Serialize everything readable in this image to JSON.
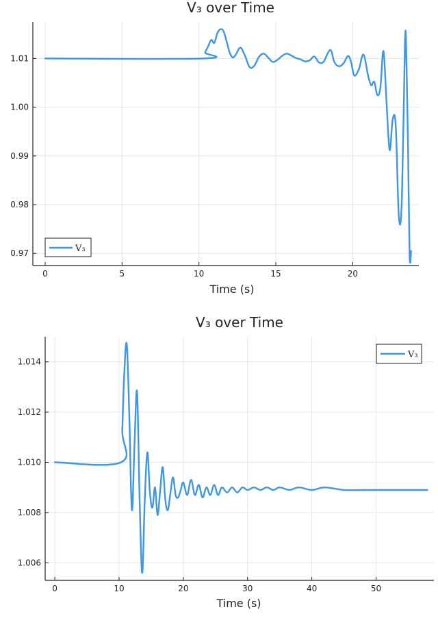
{
  "colors": {
    "series": "#3e97e0",
    "axis": "#222222",
    "grid": "#e6e6e6"
  },
  "chart_data": [
    {
      "type": "line",
      "title": "V₃ over Time",
      "xlabel": "Time (s)",
      "ylabel": "",
      "xlim": [
        -0.8,
        24.3
      ],
      "ylim": [
        0.9675,
        1.0175
      ],
      "xticks": [
        0,
        5,
        10,
        15,
        20
      ],
      "yticks": [
        0.97,
        0.98,
        0.99,
        1.0,
        1.01
      ],
      "ytick_labels": [
        "0.97",
        "0.98",
        "0.99",
        "1.00",
        "1.01"
      ],
      "grid": true,
      "legend_position": "bottom-left",
      "series": [
        {
          "name": "V₃",
          "x": [
            0,
            10.3,
            10.4,
            10.6,
            10.8,
            11.0,
            11.2,
            11.4,
            11.6,
            11.8,
            12.0,
            12.2,
            12.4,
            12.7,
            13.0,
            13.3,
            13.6,
            13.9,
            14.2,
            14.5,
            14.8,
            15.1,
            15.4,
            15.7,
            16.0,
            16.3,
            16.6,
            16.9,
            17.2,
            17.5,
            17.8,
            18.1,
            18.4,
            18.6,
            18.8,
            19.1,
            19.4,
            19.7,
            19.9,
            20.1,
            20.4,
            20.7,
            21.0,
            21.2,
            21.4,
            21.6,
            21.8,
            22.0,
            22.2,
            22.4,
            22.6,
            22.8,
            23.0,
            23.2,
            23.4,
            23.5,
            23.6,
            23.7,
            23.8
          ],
          "y": [
            1.01,
            1.01,
            1.0112,
            1.0125,
            1.0138,
            1.0132,
            1.0152,
            1.016,
            1.0156,
            1.0135,
            1.0112,
            1.0102,
            1.0108,
            1.0122,
            1.0105,
            1.0082,
            1.0085,
            1.0103,
            1.011,
            1.0102,
            1.0093,
            1.0097,
            1.0105,
            1.011,
            1.0106,
            1.0101,
            1.0098,
            1.0094,
            1.0096,
            1.0104,
            1.0092,
            1.0093,
            1.0112,
            1.0116,
            1.0093,
            1.0084,
            1.009,
            1.0105,
            1.0092,
            1.0065,
            1.0078,
            1.0108,
            1.0065,
            1.0045,
            1.0052,
            1.0025,
            1.004,
            1.0115,
            1.001,
            0.9912,
            0.9975,
            0.996,
            0.9775,
            0.9815,
            1.0138,
            1.009,
            0.991,
            0.9695,
            0.9705
          ]
        }
      ]
    },
    {
      "type": "line",
      "title": "V₃ over Time",
      "xlabel": "Time (s)",
      "ylabel": "",
      "xlim": [
        -1.5,
        59
      ],
      "ylim": [
        1.0053,
        1.015
      ],
      "xticks": [
        0,
        10,
        20,
        30,
        40,
        50
      ],
      "yticks": [
        1.006,
        1.008,
        1.01,
        1.012,
        1.014
      ],
      "ytick_labels": [
        "1.006",
        "1.008",
        "1.010",
        "1.012",
        "1.014"
      ],
      "grid": true,
      "legend_position": "top-right",
      "series": [
        {
          "name": "V₃",
          "x": [
            0,
            10.3,
            10.5,
            10.8,
            11.2,
            11.6,
            12.0,
            12.4,
            12.8,
            13.2,
            13.6,
            14.0,
            14.4,
            14.8,
            15.2,
            15.6,
            16.0,
            16.4,
            16.8,
            17.2,
            17.6,
            18.0,
            18.4,
            18.8,
            19.2,
            19.6,
            20.0,
            20.6,
            21.2,
            21.8,
            22.4,
            23.0,
            23.6,
            24.2,
            24.8,
            25.4,
            26.0,
            26.8,
            27.6,
            28.4,
            29.2,
            30.0,
            31.0,
            32.0,
            33.0,
            34.0,
            35.0,
            36.5,
            38.0,
            40.0,
            42.0,
            45.0,
            48.0,
            51.0,
            54.0,
            58.0
          ],
          "y": [
            1.01,
            1.01,
            1.0113,
            1.0135,
            1.0147,
            1.0118,
            1.0081,
            1.0107,
            1.0128,
            1.0085,
            1.0056,
            1.0085,
            1.0104,
            1.0088,
            1.0082,
            1.009,
            1.0079,
            1.0089,
            1.0098,
            1.0085,
            1.0081,
            1.0088,
            1.0094,
            1.0087,
            1.0086,
            1.0089,
            1.0092,
            1.0087,
            1.0093,
            1.0087,
            1.0091,
            1.0086,
            1.009,
            1.0087,
            1.0091,
            1.0087,
            1.009,
            1.0088,
            1.009,
            1.0088,
            1.009,
            1.0089,
            1.009,
            1.0089,
            1.009,
            1.0089,
            1.009,
            1.0089,
            1.009,
            1.0089,
            1.009,
            1.0089,
            1.0089,
            1.0089,
            1.0089,
            1.0089
          ]
        }
      ]
    }
  ]
}
